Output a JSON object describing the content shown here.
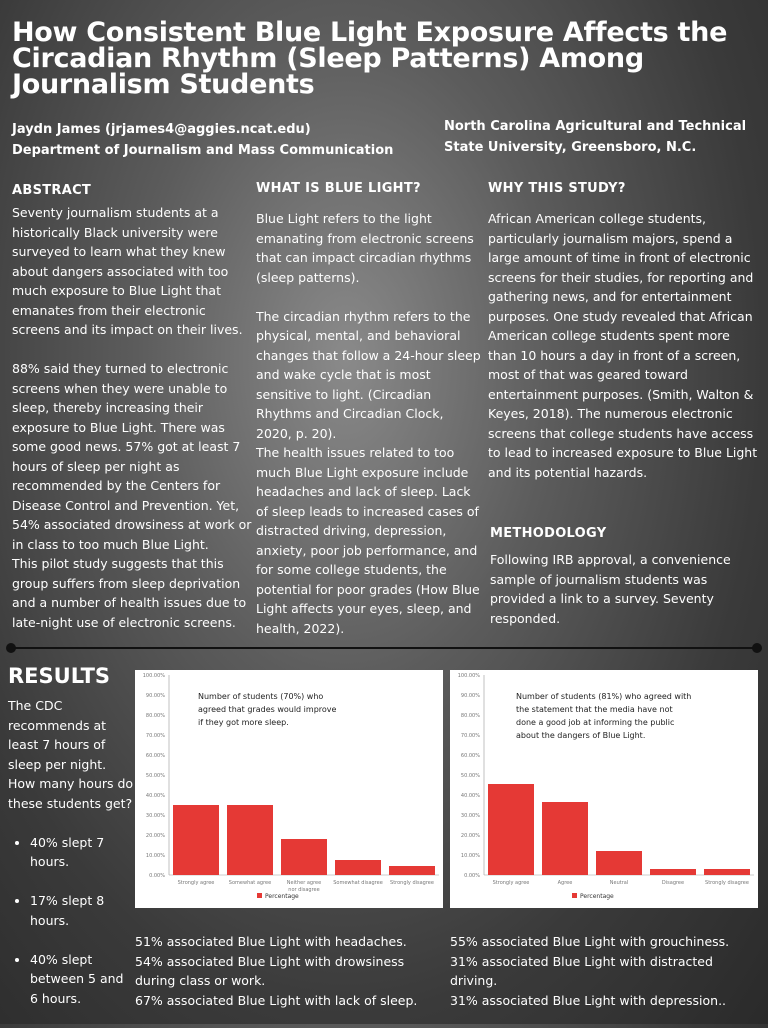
{
  "title": "How Consistent Blue Light Exposure Affects the Circadian Rhythm (Sleep Patterns) Among Journalism Students",
  "author": {
    "name": "Jaydn James (jrjames4@aggies.ncat.edu)",
    "department": "Department of Journalism and Mass Communication",
    "university": "North Carolina Agricultural and Technical State University, Greensboro, N.C."
  },
  "abstract": {
    "heading": "ABSTRACT",
    "text": "Seventy journalism students at a historically Black university were surveyed to learn what they knew about dangers associated with too much exposure to Blue Light that emanates from their electronic screens and its impact on their lives.\n\n88% said they turned to electronic screens when they were unable to sleep, thereby increasing their exposure to Blue Light.  There was some good news. 57% got at least 7 hours of sleep per night as recommended by the Centers for Disease Control and Prevention. Yet, 54% associated drowsiness at work or in class to too much Blue Light.\nThis pilot study suggests that this group suffers from sleep deprivation and a number of health issues due to late-night use of electronic screens."
  },
  "blue_light": {
    "heading": "WHAT IS BLUE LIGHT?",
    "text": "Blue Light refers to the light emanating from electronic screens that can impact circadian rhythms (sleep patterns).\n\nThe circadian rhythm refers to the physical, mental, and behavioral changes that follow a 24-hour sleep and wake cycle that is most sensitive to light.  (Circadian Rhythms and Circadian Clock, 2020, p. 20).\nThe health issues related to too much Blue Light exposure include headaches and lack of sleep. Lack of sleep leads to increased cases of distracted driving, depression, anxiety, poor job performance, and for some college students, the potential for poor grades (How Blue Light affects your eyes, sleep, and health, 2022)."
  },
  "why": {
    "heading": "WHY THIS STUDY?",
    "text": "African American college students, particularly journalism majors, spend a large amount of time in front of electronic screens for their studies, for reporting and gathering news, and for entertainment purposes. One study revealed that African American college students spent more than 10 hours a day in front of a screen, most of that was geared toward entertainment purposes. (Smith, Walton & Keyes, 2018). The numerous electronic screens that college students have access to lead to increased exposure to Blue Light and its potential hazards."
  },
  "methodology": {
    "heading": "METHODOLOGY",
    "text": "Following IRB approval, a convenience sample of journalism students was provided a link to a survey. Seventy responded."
  },
  "results": {
    "heading": "RESULTS",
    "intro": "The CDC recommends at least 7 hours of sleep per night. How many hours do these students get?",
    "bullets": [
      "40% slept 7 hours.",
      "17% slept 8 hours.",
      "40% slept between 5 and 6 hours."
    ],
    "left_notes": [
      "51% associated Blue Light with headaches.",
      "54% associated Blue Light with drowsiness during class or work.",
      "67% associated Blue Light with lack of sleep."
    ],
    "right_notes": [
      "55% associated Blue Light with grouchiness.",
      "31% associated Blue Light with distracted driving.",
      "31% associated Blue Light with depression.."
    ]
  },
  "chart_data": [
    {
      "type": "bar",
      "title": "Number of students (70%) who agreed that grades would improve if they got more sleep.",
      "categories": [
        "Strongly agree",
        "Somewhat agree",
        "Neither agree nor disagree",
        "Somewhat disagree",
        "Strongly disagree"
      ],
      "series": [
        {
          "name": "Percentage",
          "values": [
            35,
            35,
            18,
            7.5,
            4.5
          ]
        }
      ],
      "ylim": [
        0,
        100
      ],
      "yticks": [
        "0.00%",
        "10.00%",
        "20.00%",
        "30.00%",
        "40.00%",
        "50.00%",
        "60.00%",
        "70.00%",
        "80.00%",
        "90.00%",
        "100.00%"
      ],
      "color": "#e53935",
      "legend": "bottom"
    },
    {
      "type": "bar",
      "title": "Number of students (81%) who agreed with the statement that the media have not done a good job at informing the public about the dangers of Blue Light.",
      "categories": [
        "Strongly agree",
        "Agree",
        "Neutral",
        "Disagree",
        "Strongly disagree"
      ],
      "series": [
        {
          "name": "Percentage",
          "values": [
            45.5,
            36.5,
            12,
            3,
            3
          ]
        }
      ],
      "ylim": [
        0,
        100
      ],
      "yticks": [
        "0.00%",
        "10.00%",
        "20.00%",
        "30.00%",
        "40.00%",
        "50.00%",
        "60.00%",
        "70.00%",
        "80.00%",
        "90.00%",
        "100.00%"
      ],
      "color": "#e53935",
      "legend": "bottom"
    }
  ]
}
